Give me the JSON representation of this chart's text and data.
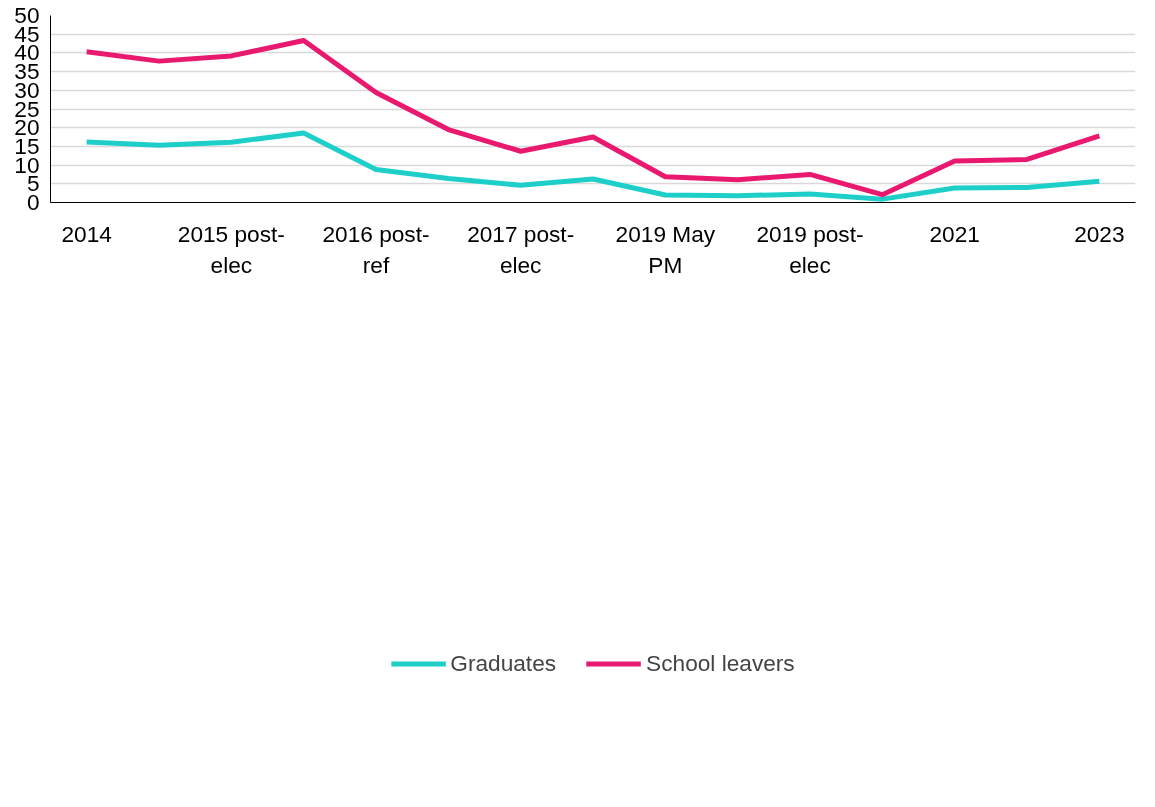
{
  "chart_data": {
    "type": "line",
    "categories": [
      "2014",
      null,
      "2015 post-elec",
      null,
      "2016 post-ref",
      null,
      "2017 post-elec",
      null,
      "2019 May PM",
      null,
      "2019 post-elec",
      null,
      "2021",
      null,
      "2023"
    ],
    "series": [
      {
        "name": "Graduates",
        "color": "#1ecfc9",
        "values": [
          16.2,
          15.3,
          16.1,
          18.6,
          8.8,
          6.4,
          4.6,
          6.3,
          2.0,
          1.8,
          2.3,
          0.9,
          3.9,
          4.0,
          5.7
        ]
      },
      {
        "name": "School leavers",
        "color": "#e8196f",
        "values": [
          40.3,
          37.8,
          39.2,
          43.3,
          29.4,
          19.5,
          13.7,
          17.5,
          6.9,
          6.1,
          7.5,
          2.1,
          11.1,
          11.5,
          17.8
        ]
      }
    ],
    "ylim": [
      0,
      50
    ],
    "yticks": [
      0,
      5,
      10,
      15,
      20,
      25,
      30,
      35,
      40,
      45,
      50
    ],
    "grid": "y",
    "legend": "bottom",
    "marker": "none",
    "line_style": "solid"
  }
}
